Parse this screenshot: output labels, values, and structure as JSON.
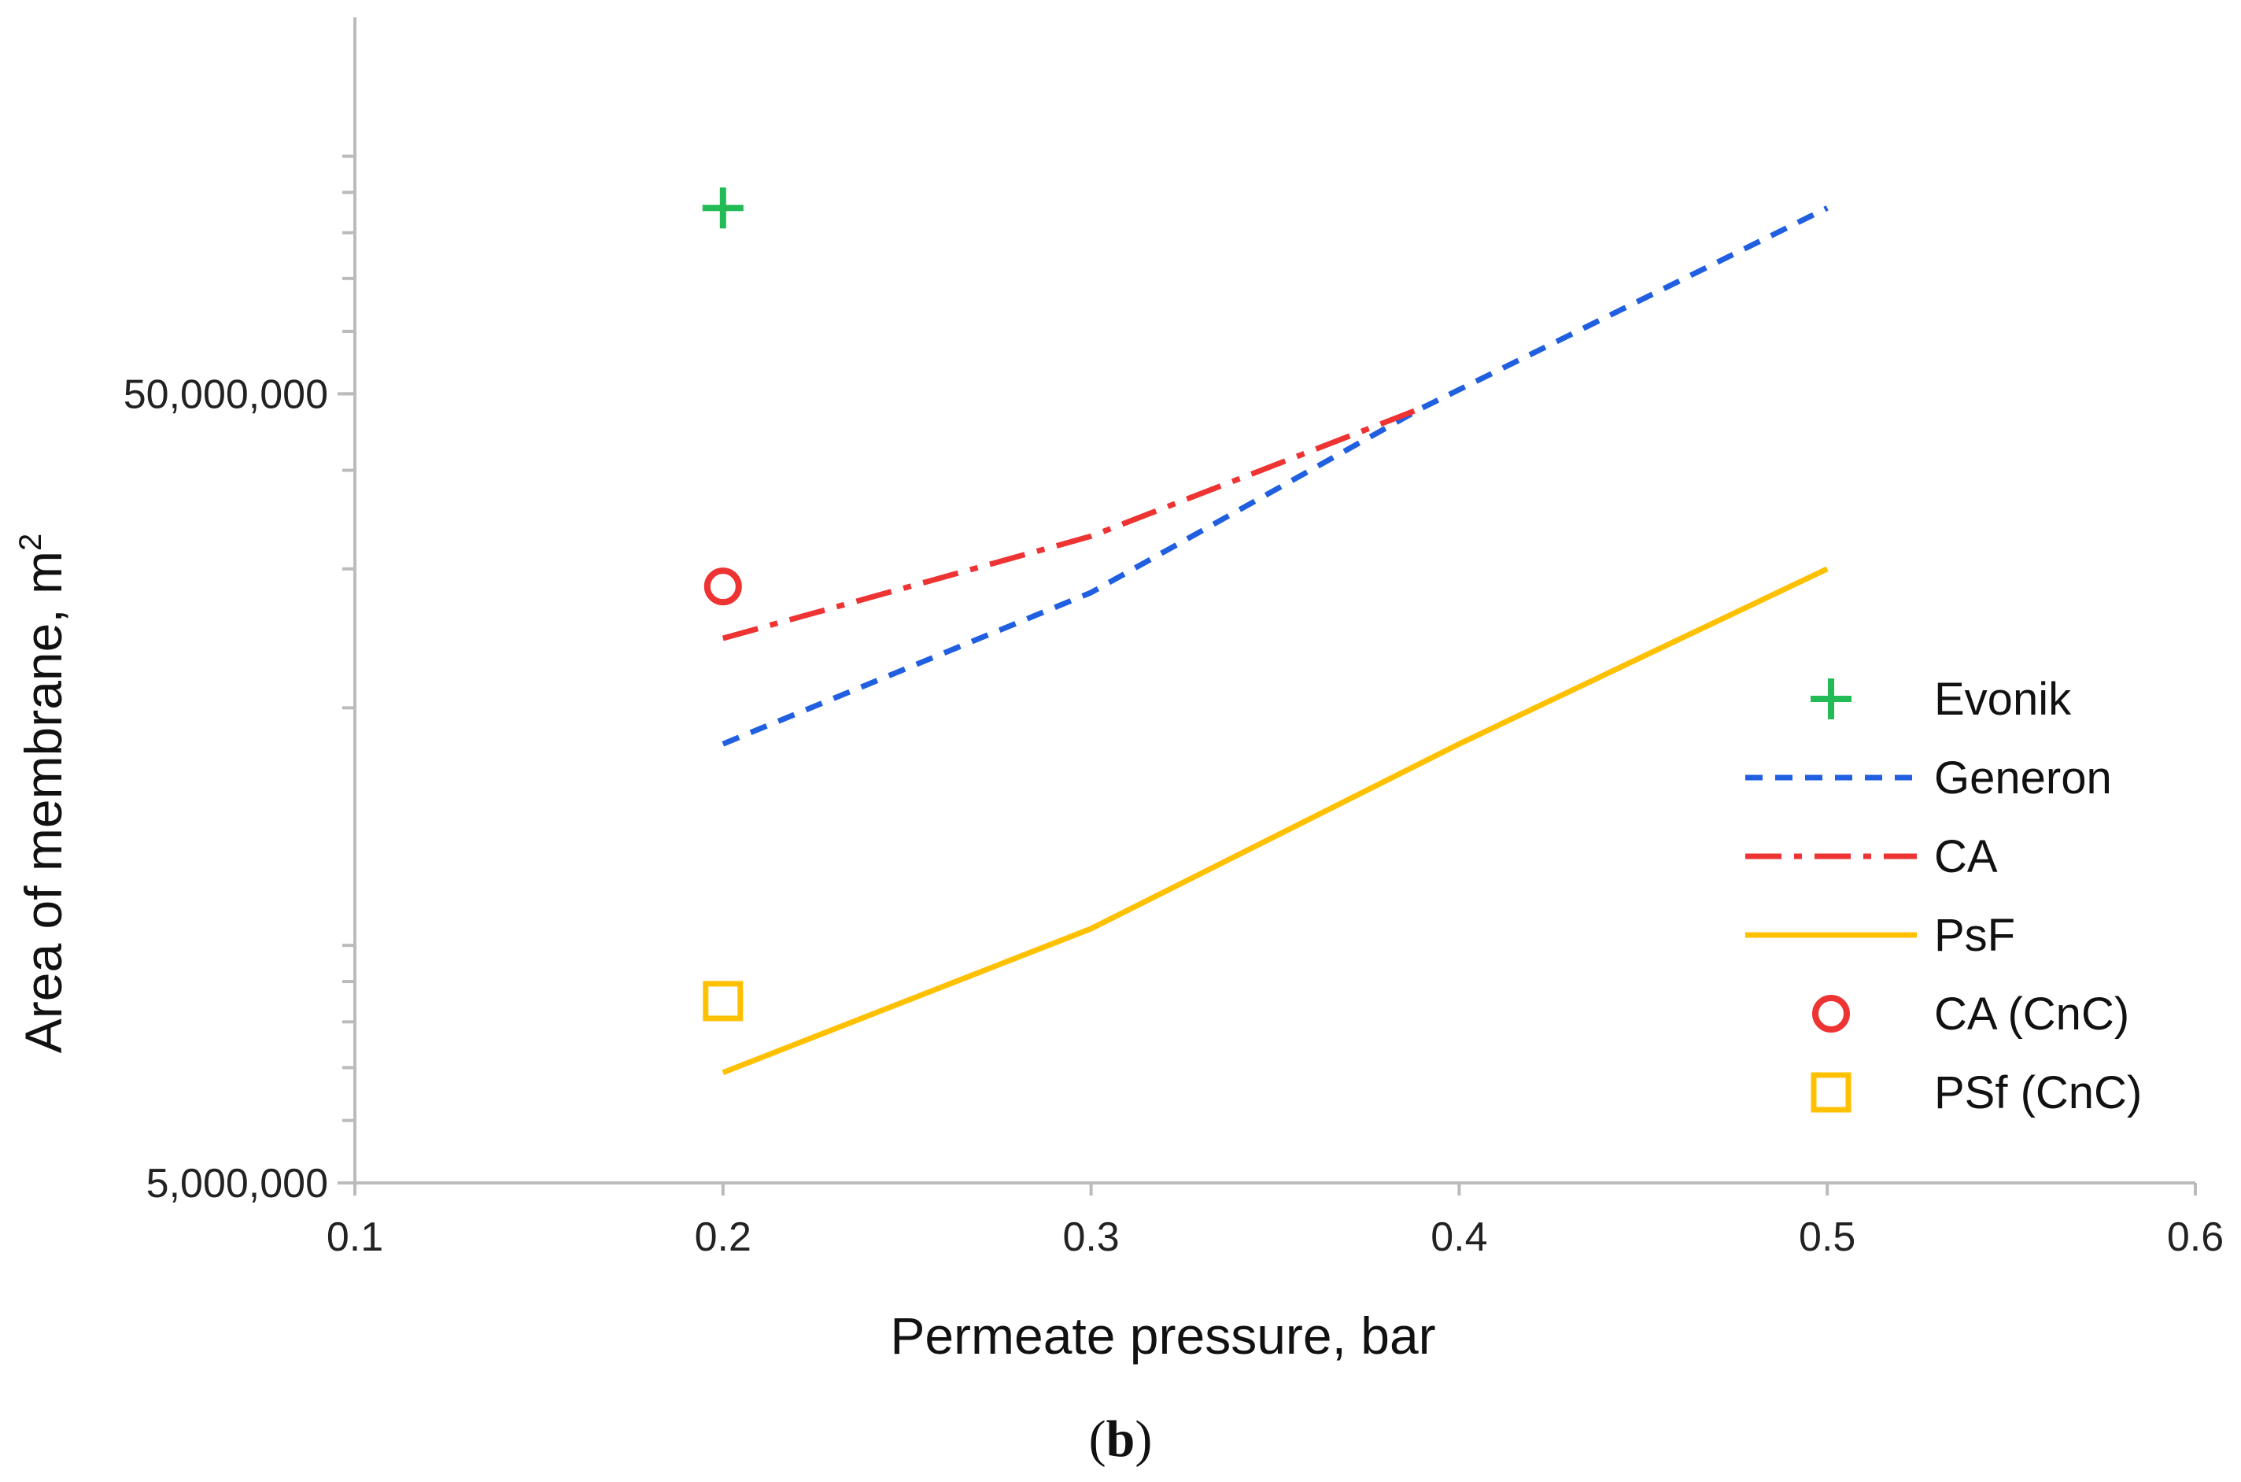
{
  "chart_data": {
    "type": "line",
    "title": "",
    "xlabel": "Permeate pressure, bar",
    "ylabel": "Area of membrane, m",
    "ylabel_superscript": "2",
    "caption_open": "(",
    "caption_letter": "b",
    "caption_close": ")",
    "xlim": [
      0.1,
      0.6
    ],
    "ylim": [
      5000000,
      150000000
    ],
    "yscale": "log",
    "x_ticks": [
      0.1,
      0.2,
      0.3,
      0.4,
      0.5,
      0.6
    ],
    "x_tick_labels": [
      "0.1",
      "0.2",
      "0.3",
      "0.4",
      "0.5",
      "0.6"
    ],
    "y_labeled_ticks": [
      5000000,
      50000000
    ],
    "y_tick_labels": [
      "5,000,000",
      "50,000,000"
    ],
    "grid": false,
    "legend_position": "right",
    "series": [
      {
        "name": "Evonik",
        "style": "marker-plus",
        "color": "#22bb55",
        "x": [
          0.2
        ],
        "y": [
          86000000
        ]
      },
      {
        "name": "Generon",
        "style": "dashed",
        "color": "#1f5fe0",
        "x": [
          0.2,
          0.3,
          0.39,
          0.5
        ],
        "y": [
          18000000,
          28000000,
          48000000,
          86000000
        ]
      },
      {
        "name": "CA",
        "style": "dashdot",
        "color": "#ee3333",
        "x": [
          0.2,
          0.3,
          0.39
        ],
        "y": [
          24500000,
          33000000,
          48000000
        ]
      },
      {
        "name": "PsF",
        "style": "solid",
        "color": "#ffc000",
        "x": [
          0.2,
          0.3,
          0.4,
          0.5
        ],
        "y": [
          6900000,
          10500000,
          18000000,
          30000000
        ]
      },
      {
        "name": "CA (CnC)",
        "style": "marker-circle",
        "color": "#ee3333",
        "x": [
          0.2
        ],
        "y": [
          28500000
        ]
      },
      {
        "name": "PSf (CnC)",
        "style": "marker-square",
        "color": "#ffc000",
        "x": [
          0.2
        ],
        "y": [
          8500000
        ]
      }
    ]
  }
}
